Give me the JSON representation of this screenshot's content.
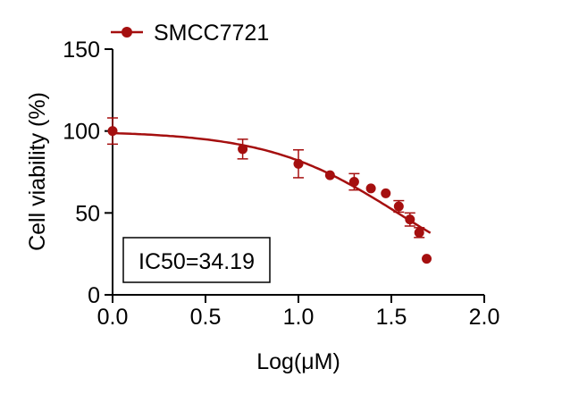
{
  "chart_data": {
    "type": "scatter",
    "title": "",
    "xlabel": "Log(μM)",
    "ylabel": "Cell viability (%)",
    "xlim": [
      0,
      2.0
    ],
    "ylim": [
      0,
      150
    ],
    "xticks": [
      "0.0",
      "0.5",
      "1.0",
      "1.5",
      "2.0"
    ],
    "yticks": [
      "0",
      "50",
      "100",
      "150"
    ],
    "xtick_values": [
      0,
      0.5,
      1.0,
      1.5,
      2.0
    ],
    "ytick_values": [
      0,
      50,
      100,
      150
    ],
    "grid": false,
    "legend_position": "top-left",
    "series": [
      {
        "name": "SMCC7721",
        "color": "#a50f0f",
        "x": [
          0,
          0.7,
          1.0,
          1.17,
          1.3,
          1.39,
          1.47,
          1.54,
          1.6,
          1.65,
          1.69
        ],
        "y": [
          100,
          89,
          80,
          73,
          69,
          65,
          62,
          54,
          46,
          38,
          22
        ],
        "error": [
          8,
          6,
          8.5,
          0,
          5,
          0,
          0,
          3.5,
          4,
          3,
          0
        ]
      }
    ],
    "fit_curve": {
      "model": "4PL",
      "top": 100,
      "bottom": 0,
      "log_ic50": 1.534,
      "hill": 1.23,
      "x_range": [
        0,
        1.71
      ]
    },
    "annotation": "IC50=34.19"
  }
}
